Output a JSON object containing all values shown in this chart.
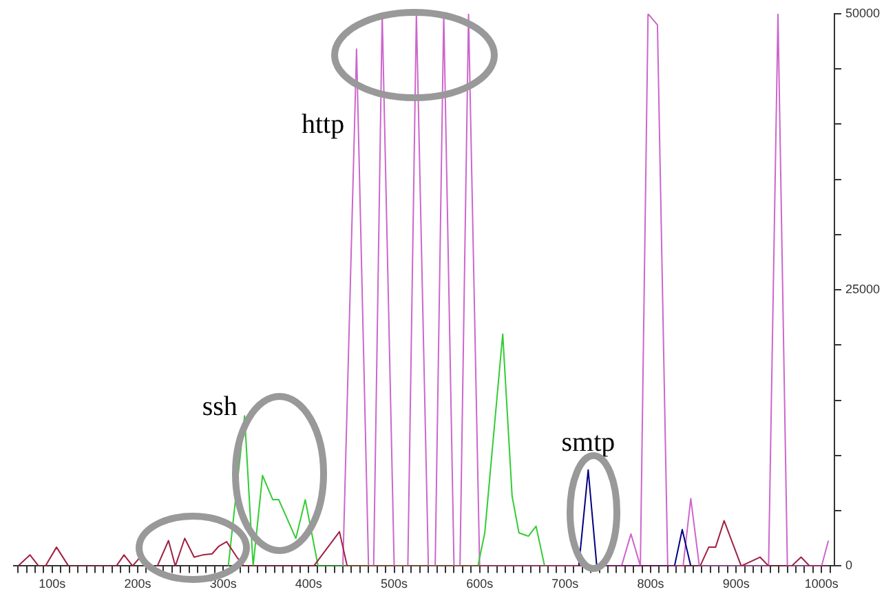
{
  "chart_data": {
    "type": "line",
    "xlim": [
      55,
      1015
    ],
    "ylim": [
      0,
      50000
    ],
    "xticks": [
      {
        "value": 60,
        "label": null
      },
      {
        "value": 70,
        "label": null
      },
      {
        "value": 80,
        "label": null
      },
      {
        "value": 90,
        "label": null
      },
      {
        "value": 100,
        "label": "100s"
      },
      {
        "value": 110,
        "label": null
      },
      {
        "value": 120,
        "label": null
      },
      {
        "value": 130,
        "label": null
      },
      {
        "value": 140,
        "label": null
      },
      {
        "value": 150,
        "label": null
      },
      {
        "value": 160,
        "label": null
      },
      {
        "value": 170,
        "label": null
      },
      {
        "value": 180,
        "label": null
      },
      {
        "value": 190,
        "label": null
      },
      {
        "value": 200,
        "label": "200s"
      },
      {
        "value": 210,
        "label": null
      },
      {
        "value": 220,
        "label": null
      },
      {
        "value": 230,
        "label": null
      },
      {
        "value": 240,
        "label": null
      },
      {
        "value": 250,
        "label": null
      },
      {
        "value": 260,
        "label": null
      },
      {
        "value": 270,
        "label": null
      },
      {
        "value": 280,
        "label": null
      },
      {
        "value": 290,
        "label": null
      },
      {
        "value": 300,
        "label": "300s"
      },
      {
        "value": 310,
        "label": null
      },
      {
        "value": 320,
        "label": null
      },
      {
        "value": 330,
        "label": null
      },
      {
        "value": 340,
        "label": null
      },
      {
        "value": 350,
        "label": null
      },
      {
        "value": 360,
        "label": null
      },
      {
        "value": 370,
        "label": null
      },
      {
        "value": 380,
        "label": null
      },
      {
        "value": 390,
        "label": null
      },
      {
        "value": 400,
        "label": "400s"
      },
      {
        "value": 410,
        "label": null
      },
      {
        "value": 420,
        "label": null
      },
      {
        "value": 430,
        "label": null
      },
      {
        "value": 440,
        "label": null
      },
      {
        "value": 450,
        "label": null
      },
      {
        "value": 460,
        "label": null
      },
      {
        "value": 470,
        "label": null
      },
      {
        "value": 480,
        "label": null
      },
      {
        "value": 490,
        "label": null
      },
      {
        "value": 500,
        "label": "500s"
      },
      {
        "value": 510,
        "label": null
      },
      {
        "value": 520,
        "label": null
      },
      {
        "value": 530,
        "label": null
      },
      {
        "value": 540,
        "label": null
      },
      {
        "value": 550,
        "label": null
      },
      {
        "value": 560,
        "label": null
      },
      {
        "value": 570,
        "label": null
      },
      {
        "value": 580,
        "label": null
      },
      {
        "value": 590,
        "label": null
      },
      {
        "value": 600,
        "label": "600s"
      },
      {
        "value": 610,
        "label": null
      },
      {
        "value": 620,
        "label": null
      },
      {
        "value": 630,
        "label": null
      },
      {
        "value": 640,
        "label": null
      },
      {
        "value": 650,
        "label": null
      },
      {
        "value": 660,
        "label": null
      },
      {
        "value": 670,
        "label": null
      },
      {
        "value": 680,
        "label": null
      },
      {
        "value": 690,
        "label": null
      },
      {
        "value": 700,
        "label": "700s"
      },
      {
        "value": 710,
        "label": null
      },
      {
        "value": 720,
        "label": null
      },
      {
        "value": 730,
        "label": null
      },
      {
        "value": 740,
        "label": null
      },
      {
        "value": 750,
        "label": null
      },
      {
        "value": 760,
        "label": null
      },
      {
        "value": 770,
        "label": null
      },
      {
        "value": 780,
        "label": null
      },
      {
        "value": 790,
        "label": null
      },
      {
        "value": 800,
        "label": "800s"
      },
      {
        "value": 810,
        "label": null
      },
      {
        "value": 820,
        "label": null
      },
      {
        "value": 830,
        "label": null
      },
      {
        "value": 840,
        "label": null
      },
      {
        "value": 850,
        "label": null
      },
      {
        "value": 860,
        "label": null
      },
      {
        "value": 870,
        "label": null
      },
      {
        "value": 880,
        "label": null
      },
      {
        "value": 890,
        "label": null
      },
      {
        "value": 900,
        "label": "900s"
      },
      {
        "value": 910,
        "label": null
      },
      {
        "value": 920,
        "label": null
      },
      {
        "value": 930,
        "label": null
      },
      {
        "value": 940,
        "label": null
      },
      {
        "value": 950,
        "label": null
      },
      {
        "value": 960,
        "label": null
      },
      {
        "value": 970,
        "label": null
      },
      {
        "value": 980,
        "label": null
      },
      {
        "value": 990,
        "label": null
      },
      {
        "value": 1000,
        "label": "1000s"
      },
      {
        "value": 1010,
        "label": null
      }
    ],
    "yticks": [
      0,
      {
        "value": 5000,
        "label": null
      },
      {
        "value": 10000,
        "label": null
      },
      {
        "value": 15000,
        "label": null
      },
      {
        "value": 20000,
        "label": null
      },
      25000,
      {
        "value": 30000,
        "label": null
      },
      {
        "value": 35000,
        "label": null
      },
      {
        "value": 40000,
        "label": null
      },
      {
        "value": 45000,
        "label": null
      },
      50000
    ],
    "grid": false,
    "legend": false,
    "marker": "none",
    "line_style": "solid",
    "series": [
      {
        "color": "#a02040",
        "x": [
          60,
          74,
          84,
          92,
          105,
          119,
          175,
          184,
          194,
          205,
          215,
          223,
          236,
          244,
          255,
          266,
          276,
          287,
          295,
          304,
          316,
          324,
          406,
          436,
          445,
          858,
          868,
          876,
          886,
          906,
          928,
          938,
          965,
          976,
          986,
          1008
        ],
        "values": [
          0,
          1000,
          0,
          0,
          1700,
          0,
          0,
          1000,
          0,
          1000,
          0,
          0,
          2300,
          0,
          2500,
          800,
          1000,
          1100,
          1800,
          2200,
          800,
          0,
          0,
          3100,
          0,
          0,
          1700,
          1700,
          4100,
          0,
          800,
          0,
          0,
          800,
          0,
          0
        ]
      },
      {
        "name": "ssh",
        "color": "#33cc33",
        "x": [
          306,
          325,
          335,
          346,
          358,
          365,
          385,
          396,
          411,
          598,
          606,
          627,
          638,
          646,
          657,
          666,
          676
        ],
        "values": [
          0,
          13600,
          0,
          8200,
          6000,
          6000,
          2500,
          6000,
          0,
          0,
          3000,
          21000,
          6300,
          3000,
          2700,
          3600,
          0
        ]
      },
      {
        "name": "smtp",
        "color": "#000080",
        "x": [
          716,
          727,
          737,
          828,
          837,
          847
        ],
        "values": [
          0,
          8700,
          0,
          0,
          3300,
          0
        ]
      },
      {
        "name": "http",
        "color": "#cc66cc",
        "x": [
          440,
          456,
          470,
          476,
          486,
          500,
          516,
          526,
          540,
          548,
          558,
          570,
          577,
          587,
          600,
          766,
          777,
          788,
          797,
          808,
          820,
          838,
          847,
          857,
          938,
          949,
          960,
          1000,
          1008
        ],
        "values": [
          0,
          46800,
          0,
          0,
          50000,
          0,
          0,
          50000,
          0,
          0,
          50000,
          0,
          0,
          50000,
          0,
          0,
          2900,
          0,
          50000,
          49000,
          0,
          0,
          6100,
          0,
          0,
          50000,
          0,
          0,
          2300
        ]
      }
    ]
  }
}
